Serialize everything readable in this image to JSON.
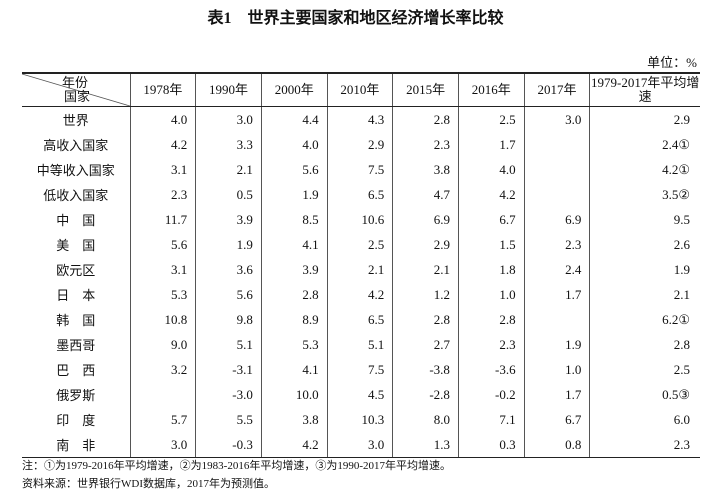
{
  "title": "表1　世界主要国家和地区经济增长率比较",
  "unit": "单位：%",
  "table": {
    "corner_top": "年份",
    "corner_bottom": "国家",
    "columns": [
      "1978年",
      "1990年",
      "2000年",
      "2010年",
      "2015年",
      "2016年",
      "2017年",
      "1979-2017年平均增速"
    ],
    "rows": [
      [
        "世界",
        "4.0",
        "3.0",
        "4.4",
        "4.3",
        "2.8",
        "2.5",
        "3.0",
        "2.9"
      ],
      [
        "高收入国家",
        "4.2",
        "3.3",
        "4.0",
        "2.9",
        "2.3",
        "1.7",
        null,
        "2.4①"
      ],
      [
        "中等收入国家",
        "3.1",
        "2.1",
        "5.6",
        "7.5",
        "3.8",
        "4.0",
        null,
        "4.2①"
      ],
      [
        "低收入国家",
        "2.3",
        "0.5",
        "1.9",
        "6.5",
        "4.7",
        "4.2",
        null,
        "3.5②"
      ],
      [
        "中　国",
        "11.7",
        "3.9",
        "8.5",
        "10.6",
        "6.9",
        "6.7",
        "6.9",
        "9.5"
      ],
      [
        "美　国",
        "5.6",
        "1.9",
        "4.1",
        "2.5",
        "2.9",
        "1.5",
        "2.3",
        "2.6"
      ],
      [
        "欧元区",
        "3.1",
        "3.6",
        "3.9",
        "2.1",
        "2.1",
        "1.8",
        "2.4",
        "1.9"
      ],
      [
        "日　本",
        "5.3",
        "5.6",
        "2.8",
        "4.2",
        "1.2",
        "1.0",
        "1.7",
        "2.1"
      ],
      [
        "韩　国",
        "10.8",
        "9.8",
        "8.9",
        "6.5",
        "2.8",
        "2.8",
        null,
        "6.2①"
      ],
      [
        "墨西哥",
        "9.0",
        "5.1",
        "5.3",
        "5.1",
        "2.7",
        "2.3",
        "1.9",
        "2.8"
      ],
      [
        "巴　西",
        "3.2",
        "-3.1",
        "4.1",
        "7.5",
        "-3.8",
        "-3.6",
        "1.0",
        "2.5"
      ],
      [
        "俄罗斯",
        null,
        "-3.0",
        "10.0",
        "4.5",
        "-2.8",
        "-0.2",
        "1.7",
        "0.5③"
      ],
      [
        "印　度",
        "5.7",
        "5.5",
        "3.8",
        "10.3",
        "8.0",
        "7.1",
        "6.7",
        "6.0"
      ],
      [
        "南　非",
        "3.0",
        "-0.3",
        "4.2",
        "3.0",
        "1.3",
        "0.3",
        "0.8",
        "2.3"
      ]
    ]
  },
  "notes": [
    "注：①为1979-2016年平均增速，②为1983-2016年平均增速，③为1990-2017年平均增速。",
    "资料来源：世界银行WDI数据库，2017年为预测值。"
  ]
}
